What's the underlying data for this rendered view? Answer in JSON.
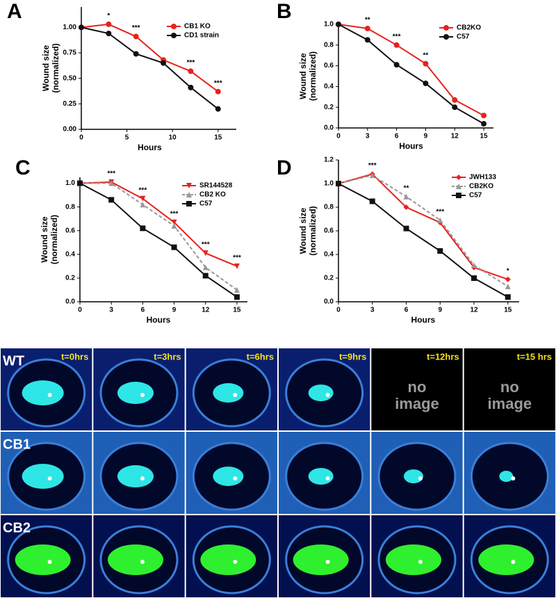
{
  "chart_data": [
    {
      "type": "line",
      "panel": "A",
      "x_label": "Hours",
      "y_label": [
        "Wound size",
        "(normalized)"
      ],
      "x": [
        0,
        3,
        6,
        9,
        12,
        15
      ],
      "xlim": [
        0,
        17
      ],
      "xticks": [
        0,
        5,
        10,
        15
      ],
      "ylim": [
        0,
        1.2
      ],
      "yticks": [
        {
          "value": 0,
          "label": "0.00"
        },
        {
          "value": 0.25,
          "label": "0.25"
        },
        {
          "value": 0.5,
          "label": "0.50"
        },
        {
          "value": 0.75,
          "label": "0.75"
        },
        {
          "value": 1,
          "label": "1.00"
        }
      ],
      "legend": "top right",
      "series": [
        {
          "name": "CB1 KO",
          "color": "#e8221d",
          "marker": "circle",
          "values": [
            1.0,
            1.03,
            0.91,
            0.68,
            0.57,
            0.37
          ]
        },
        {
          "name": "CD1 strain",
          "color": "#111111",
          "marker": "circle",
          "values": [
            1.0,
            0.94,
            0.74,
            0.65,
            0.41,
            0.2
          ]
        }
      ],
      "annotations": [
        {
          "x": 3,
          "label": "*"
        },
        {
          "x": 6,
          "label": "***"
        },
        {
          "x": 12,
          "label": "***"
        },
        {
          "x": 15,
          "label": "***"
        }
      ]
    },
    {
      "type": "line",
      "panel": "B",
      "x_label": "Hours",
      "y_label": [
        "Wound size",
        "(normalized)"
      ],
      "x": [
        0,
        3,
        6,
        9,
        12,
        15
      ],
      "xlim": [
        0,
        16
      ],
      "xticks": [
        0,
        3,
        6,
        9,
        12,
        15
      ],
      "ylim": [
        0,
        1.0
      ],
      "yticks": [
        {
          "value": 0,
          "label": "0.0"
        },
        0.2,
        0.4,
        0.6,
        0.8,
        {
          "value": 1,
          "label": "1.0"
        }
      ],
      "legend": "top right",
      "series": [
        {
          "name": "CB2KO",
          "color": "#e8221d",
          "marker": "circle",
          "values": [
            1.0,
            0.96,
            0.8,
            0.62,
            0.27,
            0.12
          ]
        },
        {
          "name": "C57",
          "color": "#111111",
          "marker": "circle",
          "values": [
            1.0,
            0.85,
            0.61,
            0.43,
            0.2,
            0.04
          ]
        }
      ],
      "annotations": [
        {
          "x": 3,
          "label": "**"
        },
        {
          "x": 6,
          "label": "***"
        },
        {
          "x": 9,
          "label": "**"
        }
      ]
    },
    {
      "type": "line",
      "panel": "C",
      "x_label": "Hours",
      "y_label": [
        "Wound size",
        "(normalized)"
      ],
      "x": [
        0,
        3,
        6,
        9,
        12,
        15
      ],
      "xlim": [
        0,
        16
      ],
      "xticks": [
        0,
        3,
        6,
        9,
        12,
        15
      ],
      "ylim": [
        0,
        1.05
      ],
      "yticks": [
        {
          "value": 0,
          "label": "0.0"
        },
        0.2,
        0.4,
        0.6,
        0.8,
        {
          "value": 1,
          "label": "1.0"
        }
      ],
      "legend": "top right",
      "series": [
        {
          "name": "SR144528",
          "color": "#e8221d",
          "marker": "triangle-down",
          "values": [
            1.0,
            1.01,
            0.87,
            0.67,
            0.41,
            0.3
          ]
        },
        {
          "name": "CB2 KO",
          "color": "#999999",
          "marker": "triangle",
          "dash": true,
          "values": [
            1.0,
            1.0,
            0.82,
            0.64,
            0.29,
            0.1
          ]
        },
        {
          "name": "C57",
          "color": "#111111",
          "marker": "square",
          "values": [
            1.0,
            0.86,
            0.62,
            0.46,
            0.22,
            0.04
          ]
        }
      ],
      "annotations": [
        {
          "x": 3,
          "label": "***"
        },
        {
          "x": 6,
          "label": "***"
        },
        {
          "x": 9,
          "label": "***"
        },
        {
          "x": 12,
          "label": "***"
        },
        {
          "x": 15,
          "label": "***"
        }
      ]
    },
    {
      "type": "line",
      "panel": "D",
      "x_label": "Hours",
      "y_label": [
        "Wound size",
        "(normalized)"
      ],
      "x": [
        0,
        3,
        6,
        9,
        12,
        15
      ],
      "xlim": [
        0,
        16
      ],
      "xticks": [
        0,
        3,
        6,
        9,
        12,
        15
      ],
      "ylim": [
        0,
        1.2
      ],
      "yticks": [
        {
          "value": 0,
          "label": "0.0"
        },
        0.2,
        0.4,
        0.6,
        0.8,
        {
          "value": 1,
          "label": "1.0"
        },
        1.2
      ],
      "legend": "top right",
      "series": [
        {
          "name": "JWH133",
          "color": "#e8221d",
          "marker": "diamond",
          "values": [
            1.0,
            1.08,
            0.8,
            0.67,
            0.29,
            0.19
          ]
        },
        {
          "name": "CB2KO",
          "color": "#999999",
          "marker": "triangle",
          "dash": true,
          "values": [
            1.0,
            1.07,
            0.89,
            0.69,
            0.31,
            0.13
          ]
        },
        {
          "name": "C57",
          "color": "#111111",
          "marker": "square",
          "values": [
            1.0,
            0.85,
            0.62,
            0.43,
            0.2,
            0.04
          ]
        }
      ],
      "annotations": [
        {
          "x": 3,
          "label": "***"
        },
        {
          "x": 6,
          "label": "**"
        },
        {
          "x": 9,
          "label": "***"
        },
        {
          "x": 15,
          "label": "*"
        }
      ]
    }
  ],
  "image_panel": {
    "rows": [
      "WT",
      "CB1",
      "CB2"
    ],
    "time_labels": [
      "t=0hrs",
      "t=3hrs",
      "t=6hrs",
      "t=9hrs",
      "t=12hrs",
      "t=15 hrs"
    ],
    "missing_label": [
      "no",
      "image"
    ]
  }
}
